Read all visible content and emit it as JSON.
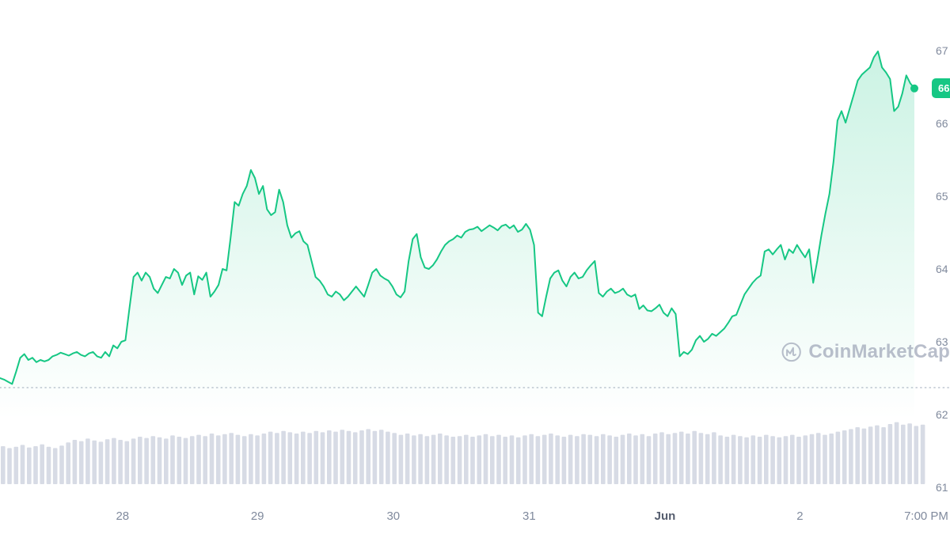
{
  "colors": {
    "green": "#16c784",
    "fill_top": "rgba(22,199,132,0.22)",
    "fill_bottom": "rgba(22,199,132,0)",
    "volume_bar": "#d7dbe5",
    "dotted_line": "#c3cad4",
    "tick_text": "#808a9d",
    "badge_bg": "#16c784",
    "watermark": "#a2a9ba"
  },
  "watermark": {
    "brand": "CoinMarketCap"
  },
  "chart_data": {
    "type": "line",
    "title": "",
    "legend": "none",
    "grid": "off",
    "x_ticks": [
      {
        "label": "28",
        "pos": 0.129
      },
      {
        "label": "29",
        "pos": 0.271
      },
      {
        "label": "30",
        "pos": 0.414
      },
      {
        "label": "31",
        "pos": 0.557
      },
      {
        "label": "Jun",
        "pos": 0.7,
        "strong": true
      },
      {
        "label": "2",
        "pos": 0.842
      },
      {
        "label": "7:00 PM",
        "pos": 0.975
      }
    ],
    "y_ticks": [
      {
        "label": "67",
        "value": 67000
      },
      {
        "label": "66",
        "value": 66000
      },
      {
        "label": "65",
        "value": 65000
      },
      {
        "label": "64",
        "value": 64000
      },
      {
        "label": "63",
        "value": 63000
      },
      {
        "label": "62",
        "value": 62000
      },
      {
        "label": "61",
        "value": 61000
      }
    ],
    "ylim": [
      61000,
      67700
    ],
    "dotted_line_value": 62370,
    "last_price": 66480,
    "series": [
      {
        "name": "price",
        "values": [
          62500,
          62480,
          62450,
          62420,
          62590,
          62780,
          62830,
          62750,
          62780,
          62720,
          62750,
          62730,
          62750,
          62800,
          62820,
          62850,
          62830,
          62810,
          62840,
          62860,
          62820,
          62800,
          62840,
          62860,
          62800,
          62780,
          62860,
          62800,
          62950,
          62910,
          63000,
          63020,
          63460,
          63890,
          63950,
          63840,
          63950,
          63890,
          63730,
          63670,
          63780,
          63890,
          63870,
          64000,
          63950,
          63780,
          63910,
          63950,
          63650,
          63900,
          63850,
          63950,
          63620,
          63690,
          63780,
          64000,
          63980,
          64430,
          64920,
          64870,
          65030,
          65140,
          65360,
          65250,
          65030,
          65140,
          64820,
          64740,
          64780,
          65090,
          64920,
          64600,
          64430,
          64490,
          64520,
          64380,
          64330,
          64110,
          63890,
          63840,
          63760,
          63650,
          63620,
          63690,
          63650,
          63570,
          63620,
          63690,
          63760,
          63690,
          63620,
          63780,
          63950,
          64000,
          63910,
          63870,
          63840,
          63760,
          63650,
          63610,
          63690,
          64110,
          64410,
          64480,
          64160,
          64020,
          64000,
          64050,
          64130,
          64240,
          64330,
          64380,
          64410,
          64460,
          64430,
          64510,
          64540,
          64550,
          64580,
          64520,
          64560,
          64600,
          64570,
          64530,
          64590,
          64610,
          64560,
          64600,
          64510,
          64540,
          64620,
          64540,
          64330,
          63400,
          63350,
          63620,
          63870,
          63950,
          63980,
          63840,
          63760,
          63890,
          63950,
          63870,
          63890,
          63980,
          64050,
          64110,
          63670,
          63620,
          63690,
          63730,
          63670,
          63690,
          63730,
          63650,
          63620,
          63650,
          63450,
          63500,
          63430,
          63420,
          63460,
          63510,
          63400,
          63350,
          63460,
          63380,
          62800,
          62860,
          62830,
          62890,
          63020,
          63080,
          63000,
          63040,
          63110,
          63080,
          63130,
          63180,
          63260,
          63350,
          63370,
          63510,
          63650,
          63730,
          63810,
          63870,
          63910,
          64240,
          64270,
          64200,
          64270,
          64330,
          64130,
          64270,
          64220,
          64330,
          64240,
          64160,
          64270,
          63810,
          64110,
          64460,
          64760,
          65030,
          65470,
          66040,
          66170,
          66010,
          66200,
          66390,
          66590,
          66670,
          66720,
          66770,
          66910,
          66990,
          66770,
          66700,
          66610,
          66170,
          66230,
          66410,
          66660,
          66550,
          66480
        ]
      }
    ],
    "volume": [
      0.6,
      0.57,
      0.59,
      0.62,
      0.58,
      0.6,
      0.63,
      0.59,
      0.57,
      0.61,
      0.66,
      0.7,
      0.68,
      0.72,
      0.69,
      0.67,
      0.71,
      0.73,
      0.7,
      0.68,
      0.72,
      0.75,
      0.73,
      0.76,
      0.74,
      0.72,
      0.77,
      0.75,
      0.73,
      0.76,
      0.78,
      0.76,
      0.8,
      0.77,
      0.79,
      0.81,
      0.78,
      0.76,
      0.79,
      0.77,
      0.8,
      0.83,
      0.81,
      0.84,
      0.82,
      0.8,
      0.83,
      0.81,
      0.84,
      0.82,
      0.85,
      0.83,
      0.86,
      0.84,
      0.82,
      0.85,
      0.87,
      0.84,
      0.86,
      0.83,
      0.81,
      0.78,
      0.8,
      0.77,
      0.79,
      0.76,
      0.78,
      0.8,
      0.77,
      0.75,
      0.76,
      0.78,
      0.75,
      0.77,
      0.79,
      0.76,
      0.78,
      0.75,
      0.77,
      0.74,
      0.77,
      0.79,
      0.76,
      0.78,
      0.8,
      0.77,
      0.75,
      0.78,
      0.76,
      0.79,
      0.78,
      0.76,
      0.79,
      0.77,
      0.75,
      0.78,
      0.8,
      0.77,
      0.79,
      0.76,
      0.8,
      0.82,
      0.79,
      0.81,
      0.83,
      0.8,
      0.84,
      0.81,
      0.79,
      0.82,
      0.77,
      0.75,
      0.78,
      0.76,
      0.74,
      0.77,
      0.75,
      0.78,
      0.76,
      0.74,
      0.76,
      0.78,
      0.75,
      0.77,
      0.79,
      0.81,
      0.78,
      0.8,
      0.83,
      0.85,
      0.87,
      0.9,
      0.88,
      0.91,
      0.93,
      0.9,
      0.95,
      0.98,
      0.94,
      0.96,
      0.92,
      0.94
    ]
  }
}
